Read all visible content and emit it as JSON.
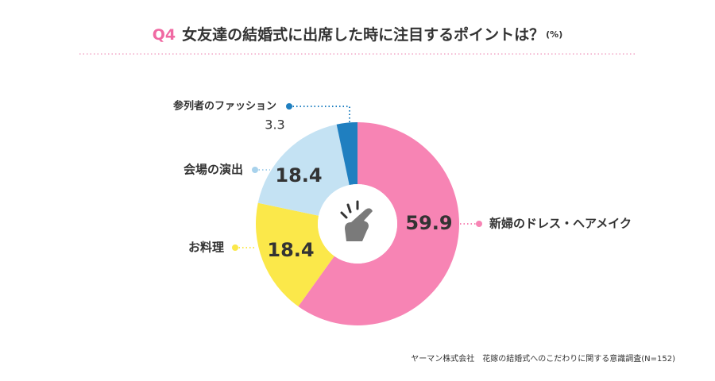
{
  "chart_data": {
    "type": "donut",
    "title_prefix": "Q4",
    "title": "女友達の結婚式に出席した時に注目するポイントは？",
    "unit": "(%)",
    "categories": [
      "新婦のドレス・ヘアメイク",
      "お料理",
      "会場の演出",
      "参列者のファッション"
    ],
    "values": [
      59.9,
      18.4,
      18.4,
      3.3
    ],
    "colors": [
      "#f784b4",
      "#fbe84a",
      "#c4e2f3",
      "#1f7fc0"
    ],
    "source": "ヤーマン株式会社　花嫁の結婚式へのこだわりに関する意識調査(N=152)"
  }
}
